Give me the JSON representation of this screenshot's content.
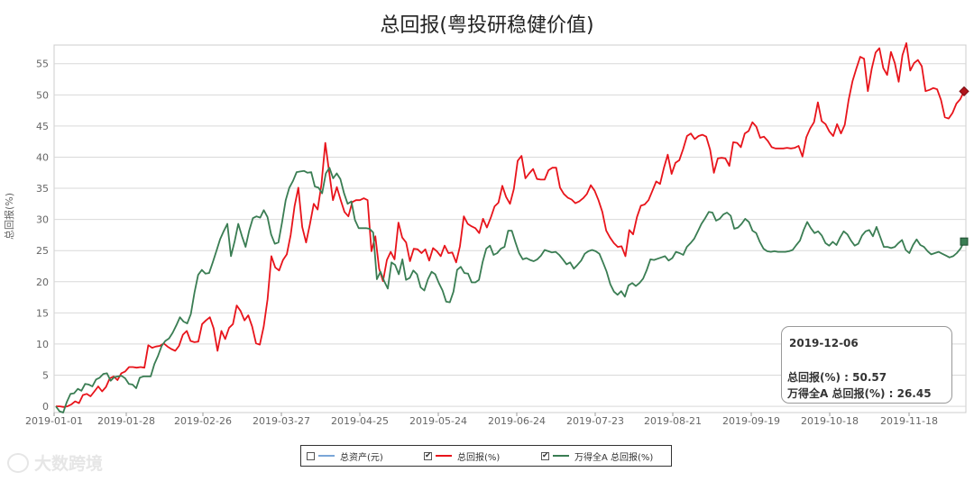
{
  "chart_data": {
    "type": "line",
    "title": "总回报(粤投研稳健价值)",
    "ylabel": "总回报(%)",
    "xlabel": "",
    "ylim": [
      -1,
      58
    ],
    "yticks": [
      0,
      5,
      10,
      15,
      20,
      25,
      30,
      35,
      40,
      45,
      50,
      55
    ],
    "x_tick_labels": [
      "2019-01-01",
      "2019-01-28",
      "2019-02-26",
      "2019-03-27",
      "2019-04-25",
      "2019-05-24",
      "2019-06-24",
      "2019-07-23",
      "2019-08-21",
      "2019-09-19",
      "2019-10-18",
      "2019-11-18"
    ],
    "grid": true,
    "legend_position": "bottom",
    "series": [
      {
        "name": "总回报(%)",
        "color": "#e8141b",
        "values": [
          0,
          0,
          -0.1,
          0,
          0.3,
          0.8,
          0.5,
          1.8,
          2,
          1.6,
          2.4,
          3.2,
          2.4,
          3.1,
          4.5,
          4.8,
          4.2,
          5.3,
          5.6,
          6.3,
          6.3,
          6.2,
          6.3,
          6.2,
          9.8,
          9.4,
          9.6,
          9.7,
          10.1,
          9.6,
          9.2,
          8.9,
          9.7,
          11.5,
          12.1,
          10.5,
          10.3,
          10.4,
          13.2,
          13.8,
          14.3,
          12.5,
          8.9,
          12.1,
          10.8,
          12.6,
          13.2,
          16.2,
          15.3,
          13.8,
          14.6,
          12.8,
          10.1,
          9.9,
          12.8,
          17.2,
          24.1,
          22.3,
          21.8,
          23.5,
          24.4,
          27.5,
          32.1,
          35.1,
          28.8,
          26.3,
          29.2,
          32.5,
          31.6,
          35.6,
          42.3,
          37.6,
          33.1,
          35.2,
          33.1,
          31.2,
          30.5,
          32.8,
          33.1,
          33.1,
          33.4,
          33.1,
          24.9,
          27.3,
          22.1,
          20.1,
          23.5,
          24.8,
          23.6,
          29.5,
          27.1,
          26.3,
          23.3,
          25.3,
          25.2,
          24.6,
          25.2,
          23.4,
          25.4,
          24.9,
          24.1,
          25.8,
          24.6,
          24.7,
          23.1,
          25.7,
          30.5,
          29.3,
          28.9,
          28.6,
          27.8,
          30.1,
          28.7,
          30.3,
          32.1,
          32.7,
          35.4,
          33.6,
          32.5,
          34.9,
          39.4,
          40.2,
          36.6,
          37.4,
          38.1,
          36.5,
          36.4,
          36.4,
          37.9,
          38.3,
          38.3,
          35.1,
          34.1,
          33.5,
          33.2,
          32.6,
          32.9,
          33.4,
          34.1,
          35.5,
          34.6,
          33.1,
          31.2,
          28.2,
          27.1,
          26.2,
          25.6,
          25.7,
          24.1,
          28.3,
          27.6,
          30.4,
          32.2,
          32.4,
          33.1,
          34.6,
          36.1,
          35.7,
          38.3,
          40.4,
          37.3,
          39.1,
          39.5,
          41.3,
          43.4,
          43.8,
          42.9,
          43.4,
          43.6,
          43.3,
          41.2,
          37.5,
          39.8,
          39.9,
          39.8,
          38.6,
          42.4,
          42.3,
          41.6,
          43.8,
          44.2,
          45.6,
          44.9,
          43.1,
          43.3,
          42.6,
          41.6,
          41.4,
          41.4,
          41.4,
          41.5,
          41.4,
          41.5,
          41.8,
          40.1,
          43.2,
          44.6,
          45.6,
          48.8,
          45.8,
          45.3,
          44.1,
          43.4,
          45.3,
          43.8,
          45.2,
          49.2,
          52.2,
          54.2,
          56.1,
          55.8,
          50.6,
          54.2,
          56.8,
          57.5,
          54.3,
          53.2,
          56.9,
          55.1,
          52.1,
          56.4,
          58.3,
          53.9,
          55.1,
          55.6,
          54.6,
          50.6,
          50.8,
          51.1,
          50.9,
          49.2,
          46.4,
          46.2,
          47.1,
          48.6,
          49.3,
          50.57
        ]
      },
      {
        "name": "万得全A 总回报(%)",
        "color": "#3a7d53",
        "values": [
          0,
          -0.8,
          -1,
          0.7,
          2,
          2.1,
          2.8,
          2.5,
          3.6,
          3.5,
          3.2,
          4.3,
          4.6,
          5.2,
          5.3,
          4.1,
          4.7,
          4.8,
          4.9,
          4.5,
          3.6,
          3.5,
          2.9,
          4.6,
          4.8,
          4.8,
          4.8,
          6.8,
          8.1,
          9.7,
          10.5,
          10.9,
          11.8,
          13,
          14.3,
          13.6,
          13.3,
          14.8,
          18.3,
          21.1,
          21.9,
          21.3,
          21.4,
          23.1,
          24.9,
          26.8,
          28.1,
          29.3,
          24.1,
          26.5,
          29.3,
          27.3,
          25.6,
          28.2,
          30.2,
          30.5,
          30.3,
          31.5,
          30.4,
          27.6,
          26.1,
          26.3,
          29.5,
          33.1,
          35.1,
          36.2,
          37.6,
          37.7,
          37.8,
          37.5,
          37.6,
          35.3,
          35.1,
          34.2,
          37.4,
          38.3,
          36.6,
          37.4,
          36.5,
          34.2,
          32.5,
          32.9,
          29.9,
          28.6,
          28.6,
          28.6,
          28.5,
          27.9,
          20.4,
          21.6,
          20.1,
          18.9,
          23.1,
          22.7,
          21.2,
          23.6,
          20.3,
          20.6,
          21.8,
          21.2,
          19.1,
          18.6,
          20.4,
          21.6,
          21.2,
          19.8,
          18.6,
          16.8,
          16.7,
          18.4,
          21.9,
          22.4,
          21.4,
          21.3,
          19.9,
          19.9,
          20.3,
          23.2,
          25.3,
          25.8,
          24.3,
          24.6,
          25.3,
          25.6,
          28.2,
          28.2,
          26.3,
          24.6,
          23.6,
          23.8,
          23.5,
          23.3,
          23.6,
          24.2,
          25.1,
          24.9,
          24.7,
          24.8,
          24.3,
          23.6,
          22.8,
          23.1,
          22.1,
          22.7,
          23.4,
          24.5,
          24.9,
          25.1,
          24.9,
          24.5,
          23.1,
          21.6,
          19.6,
          18.4,
          17.9,
          18.5,
          17.6,
          19.4,
          19.8,
          19.3,
          19.8,
          20.5,
          21.9,
          23.6,
          23.5,
          23.7,
          23.9,
          24.1,
          23.4,
          23.8,
          24.8,
          24.6,
          24.3,
          25.6,
          26.2,
          26.9,
          28.1,
          29.3,
          30.2,
          31.2,
          31.1,
          29.8,
          30.1,
          30.8,
          31.1,
          30.6,
          28.5,
          28.7,
          29.3,
          30.1,
          29.6,
          28.2,
          27.8,
          26.4,
          25.3,
          24.9,
          24.8,
          24.9,
          24.8,
          24.8,
          24.8,
          24.9,
          25.1,
          25.9,
          26.6,
          28.3,
          29.6,
          28.6,
          27.8,
          28.1,
          27.4,
          26.2,
          25.8,
          26.4,
          25.9,
          27.1,
          28.1,
          27.6,
          26.6,
          25.8,
          26.1,
          27.4,
          28.1,
          28.3,
          27.3,
          28.8,
          27.2,
          25.6,
          25.6,
          25.4,
          25.6,
          26.2,
          26.7,
          25.1,
          24.6,
          25.9,
          26.8,
          25.9,
          25.6,
          24.9,
          24.4,
          24.6,
          24.8,
          24.5,
          24.2,
          23.9,
          24.1,
          24.6,
          25.3,
          26.45
        ]
      }
    ]
  },
  "tooltip": {
    "date": "2019-12-06",
    "line1": "总回报(%) : 50.57",
    "line2": "万得全A 总回报(%) : 26.45"
  },
  "legend": {
    "items": [
      {
        "label": "总资产(元)",
        "color": "#7aa6d8",
        "checked": false
      },
      {
        "label": "总回报(%)",
        "color": "#e8141b",
        "checked": true
      },
      {
        "label": "万得全A 总回报(%)",
        "color": "#3a7d53",
        "checked": true
      }
    ],
    "check_mark": "✔"
  },
  "watermark": {
    "text": "大数跨境"
  }
}
